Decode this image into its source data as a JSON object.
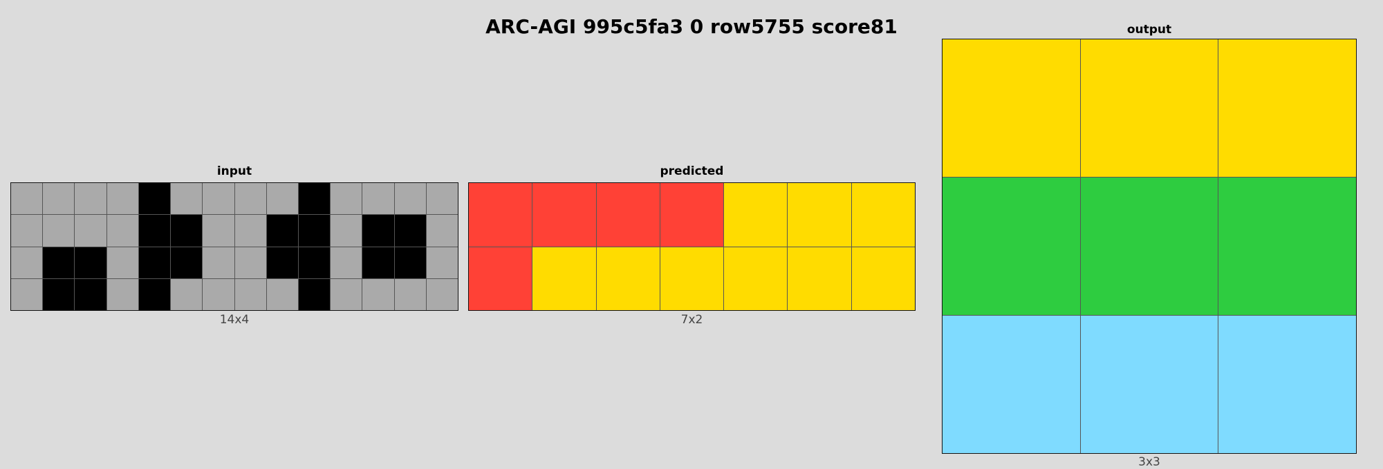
{
  "title": "ARC-AGI 995c5fa3 0 row5755 score81",
  "palette": {
    "0": "#000000",
    "2": "#ff4136",
    "3": "#2ecc40",
    "4": "#ffdc00",
    "5": "#aaaaaa",
    "8": "#7fdbff"
  },
  "panels": {
    "input": {
      "label": "input",
      "dims": "14x4",
      "rows": [
        [
          5,
          5,
          5,
          5,
          0,
          5,
          5,
          5,
          5,
          0,
          5,
          5,
          5,
          5
        ],
        [
          5,
          5,
          5,
          5,
          0,
          0,
          5,
          5,
          0,
          0,
          5,
          0,
          0,
          5
        ],
        [
          5,
          0,
          0,
          5,
          0,
          0,
          5,
          5,
          0,
          0,
          5,
          0,
          0,
          5
        ],
        [
          5,
          0,
          0,
          5,
          0,
          5,
          5,
          5,
          5,
          0,
          5,
          5,
          5,
          5
        ]
      ]
    },
    "predicted": {
      "label": "predicted",
      "dims": "7x2",
      "rows": [
        [
          2,
          2,
          2,
          2,
          4,
          4,
          4
        ],
        [
          2,
          4,
          4,
          4,
          4,
          4,
          4
        ]
      ]
    },
    "output": {
      "label": "output",
      "dims": "3x3",
      "rows": [
        [
          4,
          4,
          4
        ],
        [
          3,
          3,
          3
        ],
        [
          8,
          8,
          8
        ]
      ]
    }
  }
}
